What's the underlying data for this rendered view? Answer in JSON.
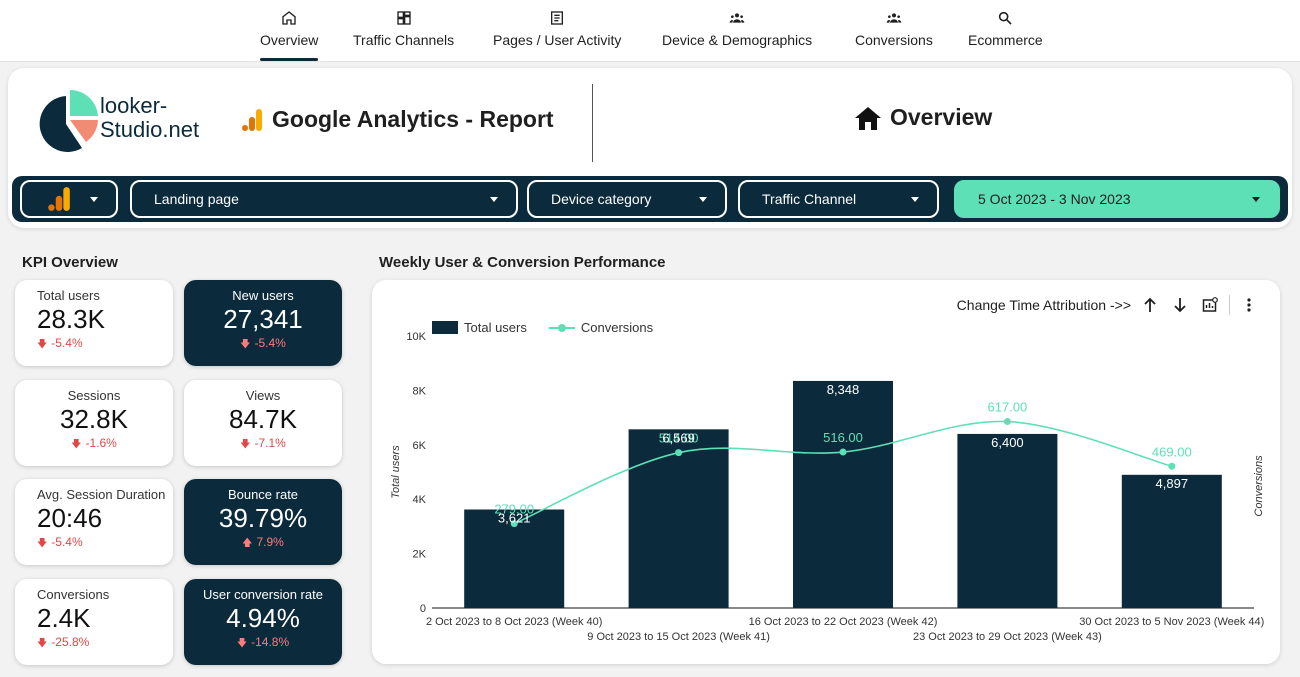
{
  "nav": {
    "tabs": [
      {
        "label": "Overview",
        "icon": "home-icon",
        "active": true
      },
      {
        "label": "Traffic Channels",
        "icon": "dashboard-icon"
      },
      {
        "label": "Pages / User Activity",
        "icon": "document-icon"
      },
      {
        "label": "Device & Demographics",
        "icon": "people-icon"
      },
      {
        "label": "Conversions",
        "icon": "people-icon"
      },
      {
        "label": "Ecommerce",
        "icon": "search-icon"
      }
    ]
  },
  "header": {
    "brand_line1": "looker-",
    "brand_line2": "Studio.net",
    "report_title": "Google Analytics - Report",
    "page_title": "Overview"
  },
  "filters": {
    "property": "",
    "landing_page": "Landing page",
    "device_category": "Device category",
    "traffic_channel": "Traffic Channel",
    "date_range": "5 Oct 2023 - 3 Nov 2023"
  },
  "kpi_section_title": "KPI Overview",
  "chart_section_title": "Weekly User & Conversion Performance",
  "kpis": [
    {
      "label": "Total users",
      "value": "28.3K",
      "delta": "-5.4%",
      "direction": "down"
    },
    {
      "label": "New users",
      "value": "27,341",
      "delta": "-5.4%",
      "direction": "down"
    },
    {
      "label": "Sessions",
      "value": "32.8K",
      "delta": "-1.6%",
      "direction": "down"
    },
    {
      "label": "Views",
      "value": "84.7K",
      "delta": "-7.1%",
      "direction": "down"
    },
    {
      "label": "Avg. Session Duration",
      "value": "20:46",
      "delta": "-5.4%",
      "direction": "down"
    },
    {
      "label": "Bounce rate",
      "value": "39.79%",
      "delta": "7.9%",
      "direction": "up"
    },
    {
      "label": "Conversions",
      "value": "2.4K",
      "delta": "-25.8%",
      "direction": "down"
    },
    {
      "label": "User conversion rate",
      "value": "4.94%",
      "delta": "-14.8%",
      "direction": "down"
    }
  ],
  "chart_toolbar": {
    "label": "Change Time Attribution ->>"
  },
  "colors": {
    "navy": "#0b2a3c",
    "mint": "#5ee0b6",
    "negative": "#e04848"
  },
  "chart_data": {
    "type": "bar",
    "categories": [
      "2 Oct 2023 to 8 Oct 2023 (Week 40)",
      "9 Oct 2023 to 15 Oct 2023 (Week 41)",
      "16 Oct 2023 to 22 Oct 2023 (Week 42)",
      "23 Oct 2023 to 29 Oct 2023 (Week 43)",
      "30 Oct 2023 to 5 Nov 2023 (Week 44)"
    ],
    "series": [
      {
        "name": "Total users",
        "type": "bar",
        "axis": "left",
        "values": [
          3621,
          6569,
          8348,
          6400,
          4897
        ],
        "labels": [
          "3,621",
          "6,569",
          "8,348",
          "6,400",
          "4,897"
        ]
      },
      {
        "name": "Conversions",
        "type": "line",
        "axis": "right",
        "values": [
          279,
          514,
          516,
          617,
          469
        ],
        "labels": [
          "279.00",
          "514.00",
          "516.00",
          "617.00",
          "469.00"
        ]
      }
    ],
    "ylabel": "Total users",
    "y2label": "Conversions",
    "ylim": [
      0,
      10000
    ],
    "yticks": [
      "0",
      "2K",
      "4K",
      "6K",
      "8K",
      "10K"
    ],
    "legend": "top-left",
    "grid": false
  }
}
